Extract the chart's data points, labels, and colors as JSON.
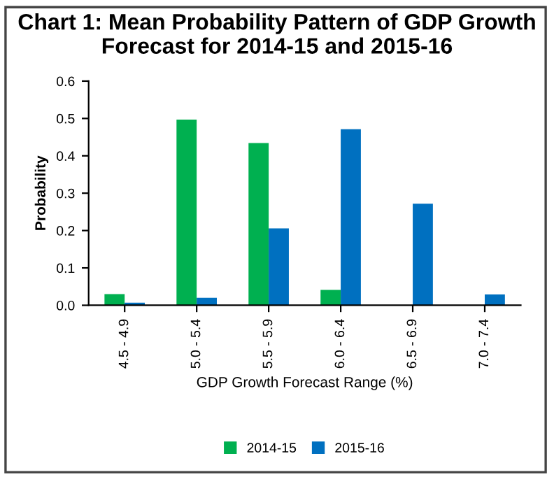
{
  "chart_data": {
    "type": "bar",
    "title": "Chart 1: Mean Probability Pattern of GDP Growth Forecast for 2014-15 and 2015-16",
    "xlabel": "GDP Growth Forecast Range (%)",
    "ylabel": "Probability",
    "categories": [
      "4.5 - 4.9",
      "5.0 - 5.4",
      "5.5 - 5.9",
      "6.0 - 6.4",
      "6.5 - 6.9",
      "7.0 - 7.4"
    ],
    "series": [
      {
        "name": "2014-15",
        "color": "#00b050",
        "values": [
          0.03,
          0.497,
          0.434,
          0.041,
          null,
          null
        ]
      },
      {
        "name": "2015-16",
        "color": "#0070c0",
        "values": [
          0.007,
          0.02,
          0.206,
          0.471,
          0.272,
          0.029
        ]
      }
    ],
    "ylim": [
      0,
      0.6
    ],
    "yticks": [
      {
        "value": 0,
        "label": "0.0"
      },
      {
        "value": 0.1,
        "label": "0.1"
      },
      {
        "value": 0.2,
        "label": "0.2"
      },
      {
        "value": 0.3,
        "label": "0.3"
      },
      {
        "value": 0.4,
        "label": "0.4"
      },
      {
        "value": 0.5,
        "label": "0.5"
      },
      {
        "value": 0.6,
        "label": "0.6"
      }
    ],
    "grid": false,
    "legend": "bottom"
  }
}
